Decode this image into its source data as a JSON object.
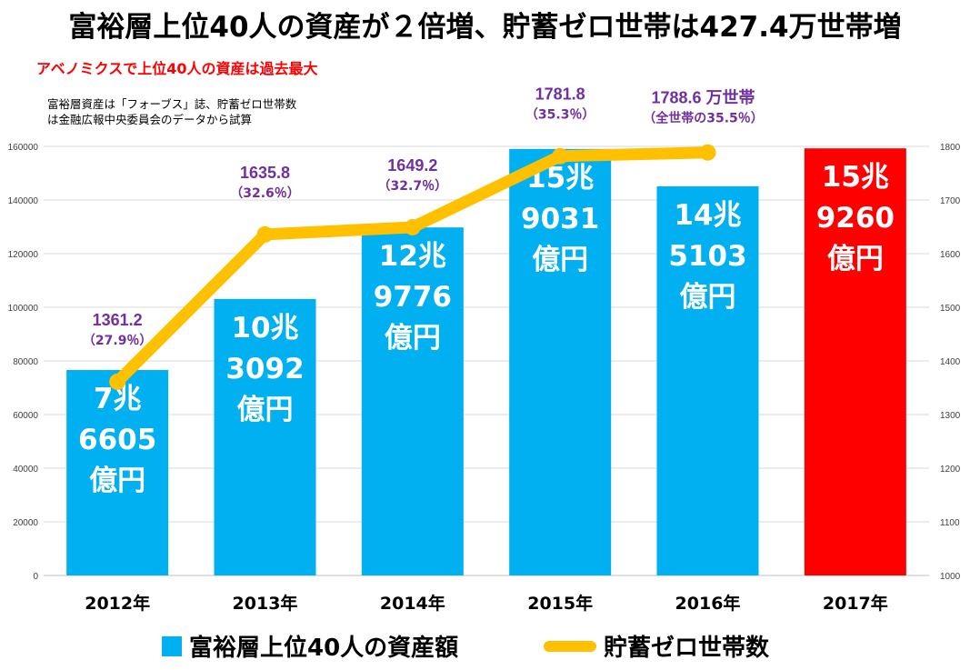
{
  "title": "富裕層上位40人の資産が２倍増、貯蓄ゼロ世帯は427.4万世帯増",
  "subtitle": "アベノミクスで上位40人の資産は過去最大",
  "note": [
    "富裕層資産は「フォーブス」誌、貯蓄ゼロ世帯数",
    "は金融広報中央委員会のデータから試算"
  ],
  "colors": {
    "bar": "#00b0f0",
    "bar_highlight": "#ff0000",
    "line": "#ffc000",
    "line_label": "#7030a0"
  },
  "legend": {
    "bars": "富裕層上位40人の資産額",
    "line": "貯蓄ゼロ世帯数"
  },
  "chart_data": {
    "type": "bar",
    "categories": [
      "2012年",
      "2013年",
      "2014年",
      "2015年",
      "2016年",
      "2017年"
    ],
    "series": [
      {
        "name": "富裕層上位40人の資産額",
        "type": "bar",
        "axis": "left",
        "values": [
          76605,
          103092,
          129776,
          159031,
          145103,
          159260
        ],
        "labels": [
          [
            "7兆",
            "6605",
            "億円"
          ],
          [
            "10兆",
            "3092",
            "億円"
          ],
          [
            "12兆",
            "9776",
            "億円"
          ],
          [
            "15兆",
            "9031",
            "億円"
          ],
          [
            "14兆",
            "5103",
            "億円"
          ],
          [
            "15兆",
            "9260",
            "億円"
          ]
        ],
        "highlight_index": 5
      },
      {
        "name": "貯蓄ゼロ世帯数",
        "type": "line",
        "axis": "right",
        "values": [
          1361.2,
          1635.8,
          1649.2,
          1781.8,
          1788.6,
          null
        ],
        "labels": [
          [
            "1361.2",
            "（27.9％）"
          ],
          [
            "1635.8",
            "（32.6％）"
          ],
          [
            "1649.2",
            "（32.7％）"
          ],
          [
            "1781.8",
            "（35.3％）"
          ],
          [
            "1788.6 万世帯",
            "（全世帯の35.5％）"
          ],
          null
        ]
      }
    ],
    "y_left": {
      "min": 0,
      "max": 160000,
      "ticks": [
        "0",
        "20000",
        "40000",
        "60000",
        "80000",
        "100000",
        "120000",
        "140000",
        "160000"
      ]
    },
    "y_right": {
      "min": 1000,
      "max": 1800,
      "ticks": [
        "1000",
        "1100",
        "1200",
        "1300",
        "1400",
        "1500",
        "1600",
        "1700",
        "1800"
      ]
    },
    "grid": true
  }
}
